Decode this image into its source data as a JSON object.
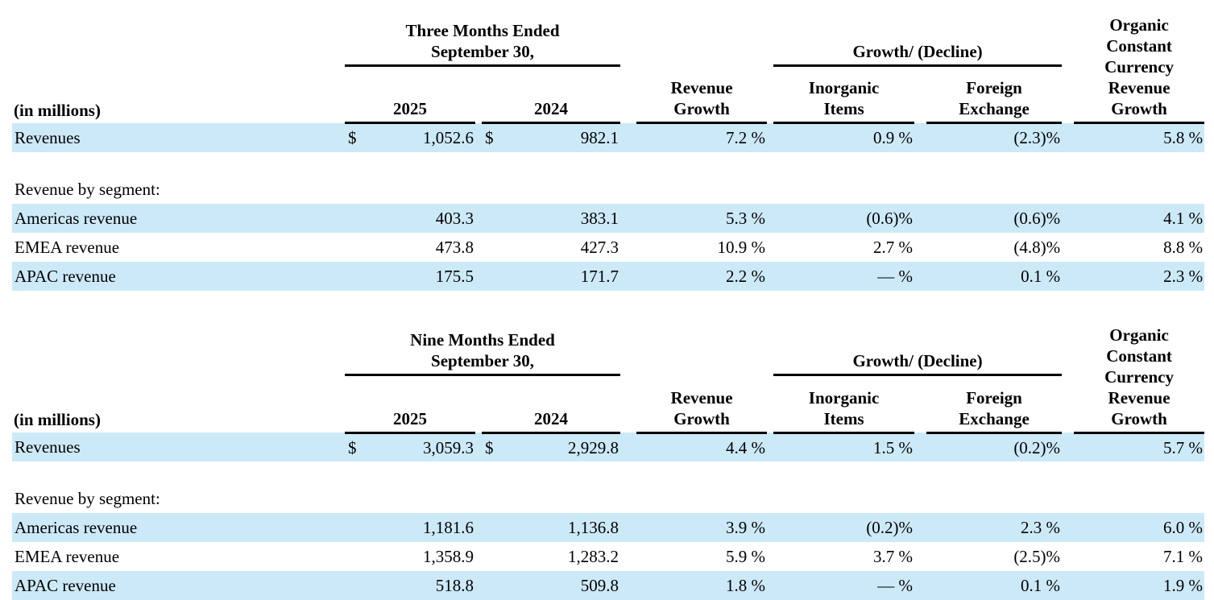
{
  "styles": {
    "highlight_color": "#cce9f8",
    "text_color": "#000000",
    "rule_color": "#000000"
  },
  "tables": [
    {
      "name": "three-months",
      "period": {
        "line1": "Three Months Ended",
        "line2": "September 30,"
      },
      "columns": {
        "in_millions": "(in millions)",
        "year1": "2025",
        "year2": "2024",
        "revenue_growth": [
          "Revenue",
          "Growth"
        ],
        "growth_decline": "Growth/ (Decline)",
        "inorganic": [
          "Inorganic",
          "Items"
        ],
        "foreign_exchange": [
          "Foreign",
          "Exchange"
        ],
        "organic": [
          "Organic",
          "Constant",
          "Currency",
          "Revenue",
          "Growth"
        ]
      },
      "rows": [
        {
          "type": "data",
          "highlight": true,
          "label": "Revenues",
          "cur1": "$",
          "val1": "1,052.6",
          "cur2": "$",
          "val2": "982.1",
          "growth": "7.2 %",
          "inorganic": "0.9 %",
          "fx": "(2.3)%",
          "organic": "5.8 %"
        },
        {
          "type": "spacer"
        },
        {
          "type": "section",
          "label": "Revenue by segment:"
        },
        {
          "type": "data",
          "highlight": true,
          "label": "Americas revenue",
          "cur1": "",
          "val1": "403.3",
          "cur2": "",
          "val2": "383.1",
          "growth": "5.3 %",
          "inorganic": "(0.6)%",
          "fx": "(0.6)%",
          "organic": "4.1 %"
        },
        {
          "type": "data",
          "highlight": false,
          "label": "EMEA revenue",
          "cur1": "",
          "val1": "473.8",
          "cur2": "",
          "val2": "427.3",
          "growth": "10.9 %",
          "inorganic": "2.7 %",
          "fx": "(4.8)%",
          "organic": "8.8 %"
        },
        {
          "type": "data",
          "highlight": true,
          "label": "APAC revenue",
          "cur1": "",
          "val1": "175.5",
          "cur2": "",
          "val2": "171.7",
          "growth": "2.2 %",
          "inorganic": "— %",
          "fx": "0.1 %",
          "organic": "2.3 %"
        }
      ]
    },
    {
      "name": "nine-months",
      "period": {
        "line1": "Nine Months Ended",
        "line2": "September 30,"
      },
      "columns": {
        "in_millions": "(in millions)",
        "year1": "2025",
        "year2": "2024",
        "revenue_growth": [
          "Revenue",
          "Growth"
        ],
        "growth_decline": "Growth/ (Decline)",
        "inorganic": [
          "Inorganic",
          "Items"
        ],
        "foreign_exchange": [
          "Foreign",
          "Exchange"
        ],
        "organic": [
          "Organic",
          "Constant",
          "Currency",
          "Revenue",
          "Growth"
        ]
      },
      "rows": [
        {
          "type": "data",
          "highlight": true,
          "label": "Revenues",
          "cur1": "$",
          "val1": "3,059.3",
          "cur2": "$",
          "val2": "2,929.8",
          "growth": "4.4 %",
          "inorganic": "1.5 %",
          "fx": "(0.2)%",
          "organic": "5.7 %"
        },
        {
          "type": "spacer"
        },
        {
          "type": "section",
          "label": "Revenue by segment:"
        },
        {
          "type": "data",
          "highlight": true,
          "label": "Americas revenue",
          "cur1": "",
          "val1": "1,181.6",
          "cur2": "",
          "val2": "1,136.8",
          "growth": "3.9 %",
          "inorganic": "(0.2)%",
          "fx": "2.3 %",
          "organic": "6.0 %"
        },
        {
          "type": "data",
          "highlight": false,
          "label": "EMEA revenue",
          "cur1": "",
          "val1": "1,358.9",
          "cur2": "",
          "val2": "1,283.2",
          "growth": "5.9 %",
          "inorganic": "3.7 %",
          "fx": "(2.5)%",
          "organic": "7.1 %"
        },
        {
          "type": "data",
          "highlight": true,
          "label": "APAC revenue",
          "cur1": "",
          "val1": "518.8",
          "cur2": "",
          "val2": "509.8",
          "growth": "1.8 %",
          "inorganic": "— %",
          "fx": "0.1 %",
          "organic": "1.9 %"
        }
      ]
    }
  ]
}
